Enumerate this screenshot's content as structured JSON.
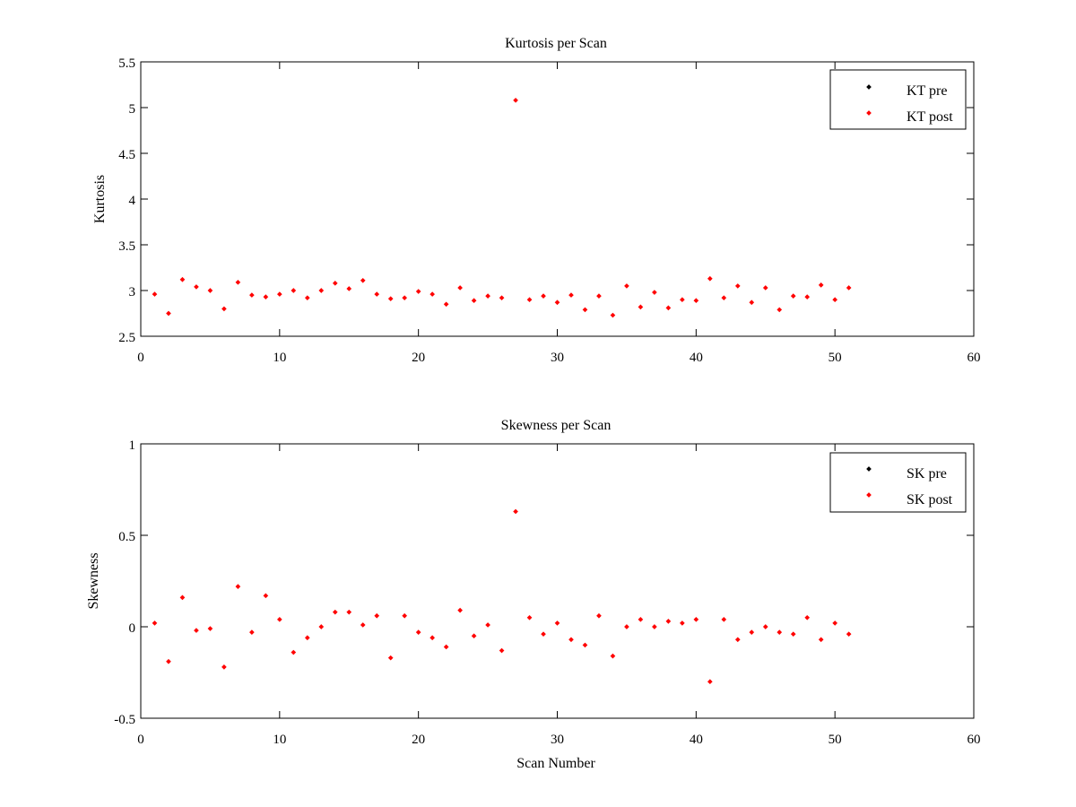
{
  "colors": {
    "pre": "#000000",
    "post": "#ff0000",
    "axes": "#000000",
    "background": "#ffffff"
  },
  "chart_data": [
    {
      "type": "scatter",
      "title": "Kurtosis per Scan",
      "xlabel": "",
      "ylabel": "Kurtosis",
      "xlim": [
        0,
        60
      ],
      "ylim": [
        2.5,
        5.5
      ],
      "xticks": [
        "0",
        "10",
        "20",
        "30",
        "40",
        "50",
        "60"
      ],
      "yticks": [
        "2.5",
        "3",
        "3.5",
        "4",
        "4.5",
        "5",
        "5.5"
      ],
      "grid": false,
      "legend_position": "top-right",
      "legend": [
        "KT pre",
        "KT post"
      ],
      "series": [
        {
          "name": "KT pre",
          "color": "#000000",
          "x": [],
          "y": []
        },
        {
          "name": "KT post",
          "color": "#ff0000",
          "x": [
            1,
            2,
            3,
            4,
            5,
            6,
            7,
            8,
            9,
            10,
            11,
            12,
            13,
            14,
            15,
            16,
            17,
            18,
            19,
            20,
            21,
            22,
            23,
            24,
            25,
            26,
            27,
            28,
            29,
            30,
            31,
            32,
            33,
            34,
            35,
            36,
            37,
            38,
            39,
            40,
            41,
            42,
            43,
            44,
            45,
            46,
            47,
            48,
            49,
            50,
            51
          ],
          "y": [
            2.96,
            2.75,
            3.12,
            3.04,
            3.0,
            2.8,
            3.09,
            2.95,
            2.93,
            2.96,
            3.0,
            2.92,
            3.0,
            3.08,
            3.02,
            3.11,
            2.96,
            2.91,
            2.92,
            2.99,
            2.96,
            2.85,
            3.03,
            2.89,
            2.94,
            2.92,
            5.08,
            2.9,
            2.94,
            2.87,
            2.95,
            2.79,
            2.94,
            2.73,
            3.05,
            2.82,
            2.98,
            2.81,
            2.9,
            2.89,
            3.13,
            2.92,
            3.05,
            2.87,
            3.03,
            2.79,
            2.94,
            2.93,
            3.06,
            2.9,
            3.03
          ]
        }
      ]
    },
    {
      "type": "scatter",
      "title": "Skewness per Scan",
      "xlabel": "Scan Number",
      "ylabel": "Skewness",
      "xlim": [
        0,
        60
      ],
      "ylim": [
        -0.5,
        1
      ],
      "xticks": [
        "0",
        "10",
        "20",
        "30",
        "40",
        "50",
        "60"
      ],
      "yticks": [
        "-0.5",
        "0",
        "0.5",
        "1"
      ],
      "grid": false,
      "legend_position": "top-right",
      "legend": [
        "SK pre",
        "SK post"
      ],
      "series": [
        {
          "name": "SK pre",
          "color": "#000000",
          "x": [],
          "y": []
        },
        {
          "name": "SK post",
          "color": "#ff0000",
          "x": [
            1,
            2,
            3,
            4,
            5,
            6,
            7,
            8,
            9,
            10,
            11,
            12,
            13,
            14,
            15,
            16,
            17,
            18,
            19,
            20,
            21,
            22,
            23,
            24,
            25,
            26,
            27,
            28,
            29,
            30,
            31,
            32,
            33,
            34,
            35,
            36,
            37,
            38,
            39,
            40,
            41,
            42,
            43,
            44,
            45,
            46,
            47,
            48,
            49,
            50,
            51
          ],
          "y": [
            0.02,
            -0.19,
            0.16,
            -0.02,
            -0.01,
            -0.22,
            0.22,
            -0.03,
            0.17,
            0.04,
            -0.14,
            -0.06,
            0.0,
            0.08,
            0.08,
            0.01,
            0.06,
            -0.17,
            0.06,
            -0.03,
            -0.06,
            -0.11,
            0.09,
            -0.05,
            0.01,
            -0.13,
            0.63,
            0.05,
            -0.04,
            0.02,
            -0.07,
            -0.1,
            0.06,
            -0.16,
            0.0,
            0.04,
            0.0,
            0.03,
            0.02,
            0.04,
            -0.3,
            0.04,
            -0.07,
            -0.03,
            0.0,
            -0.03,
            -0.04,
            0.05,
            -0.07,
            0.02,
            -0.04
          ]
        }
      ]
    }
  ]
}
